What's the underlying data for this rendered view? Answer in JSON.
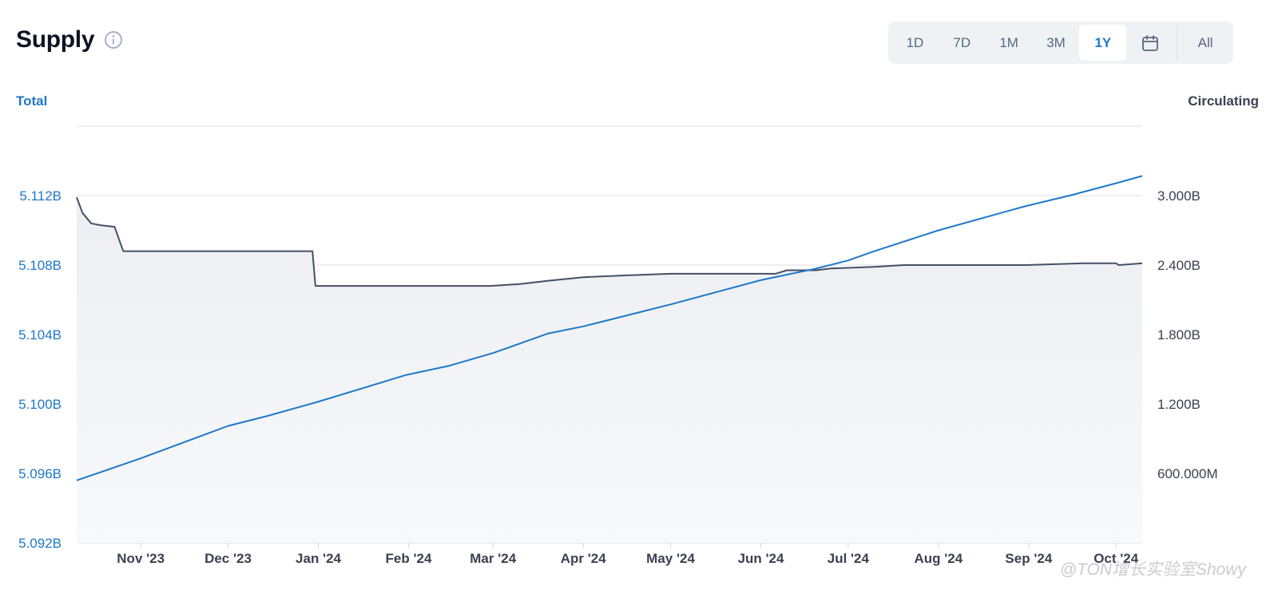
{
  "header": {
    "title": "Supply",
    "info_icon": "info-icon"
  },
  "range": {
    "options": [
      "1D",
      "7D",
      "1M",
      "3M",
      "1Y"
    ],
    "selected": "1Y",
    "calendar_icon": "calendar-icon",
    "all_label": "All"
  },
  "colors": {
    "total": "#1e78c8",
    "circulating": "#474f63",
    "grid": "#dcdfe4"
  },
  "watermark": "@TON增长实验室Showy",
  "chart_data": {
    "type": "line",
    "x_ticks": [
      "Nov '23",
      "Dec '23",
      "Jan '24",
      "Feb '24",
      "Mar '24",
      "Apr '24",
      "May '24",
      "Jun '24",
      "Jul '24",
      "Aug '24",
      "Sep '24",
      "Oct '24"
    ],
    "y_left": {
      "label": "Total",
      "ticks": [
        "5.092B",
        "5.096B",
        "5.100B",
        "5.104B",
        "5.108B",
        "5.112B"
      ],
      "range": [
        5.092,
        5.116
      ],
      "unit": "B"
    },
    "y_right": {
      "label": "Circulating",
      "ticks": [
        "600.000M",
        "1.200B",
        "1.800B",
        "2.400B",
        "3.000B"
      ],
      "range": [
        0,
        3.6
      ],
      "unit": "B"
    },
    "x_range": [
      "2023-10-10",
      "2024-10-10"
    ],
    "grid": true,
    "series": [
      {
        "name": "Total",
        "axis": "left",
        "points": [
          [
            "2023-10-10",
            5.1119
          ],
          [
            "2023-10-12",
            5.111
          ],
          [
            "2023-10-15",
            5.1104
          ],
          [
            "2023-10-18",
            5.1103
          ],
          [
            "2023-10-23",
            5.1102
          ],
          [
            "2023-10-26",
            5.1088
          ],
          [
            "2023-11-15",
            5.1088
          ],
          [
            "2023-12-10",
            5.1088
          ],
          [
            "2023-12-30",
            5.1088
          ],
          [
            "2023-12-31",
            5.1068
          ],
          [
            "2024-01-31",
            5.1068
          ],
          [
            "2024-02-29",
            5.1068
          ],
          [
            "2024-03-10",
            5.1069
          ],
          [
            "2024-03-20",
            5.1071
          ],
          [
            "2024-04-01",
            5.1073
          ],
          [
            "2024-04-15",
            5.1074
          ],
          [
            "2024-05-01",
            5.1075
          ],
          [
            "2024-05-15",
            5.1075
          ],
          [
            "2024-06-06",
            5.1075
          ],
          [
            "2024-06-10",
            5.1077
          ],
          [
            "2024-06-20",
            5.1077
          ],
          [
            "2024-06-25",
            5.1078
          ],
          [
            "2024-07-10",
            5.1079
          ],
          [
            "2024-07-20",
            5.108
          ],
          [
            "2024-08-15",
            5.108
          ],
          [
            "2024-08-31",
            5.108
          ],
          [
            "2024-09-20",
            5.1081
          ],
          [
            "2024-10-01",
            5.1081
          ],
          [
            "2024-10-02",
            5.108
          ],
          [
            "2024-10-10",
            5.1081
          ]
        ]
      },
      {
        "name": "Circulating",
        "axis": "right",
        "points": [
          [
            "2023-10-10",
            0.54
          ],
          [
            "2023-11-01",
            0.73
          ],
          [
            "2023-12-01",
            1.01
          ],
          [
            "2023-12-15",
            1.1
          ],
          [
            "2024-01-01",
            1.22
          ],
          [
            "2024-01-31",
            1.45
          ],
          [
            "2024-02-15",
            1.53
          ],
          [
            "2024-03-01",
            1.64
          ],
          [
            "2024-03-20",
            1.81
          ],
          [
            "2024-04-01",
            1.87
          ],
          [
            "2024-05-01",
            2.06
          ],
          [
            "2024-06-01",
            2.27
          ],
          [
            "2024-06-20",
            2.37
          ],
          [
            "2024-07-01",
            2.44
          ],
          [
            "2024-07-10",
            2.52
          ],
          [
            "2024-08-01",
            2.7
          ],
          [
            "2024-08-31",
            2.91
          ],
          [
            "2024-09-15",
            3.0
          ],
          [
            "2024-09-30",
            3.1
          ],
          [
            "2024-10-10",
            3.17
          ]
        ]
      }
    ]
  }
}
